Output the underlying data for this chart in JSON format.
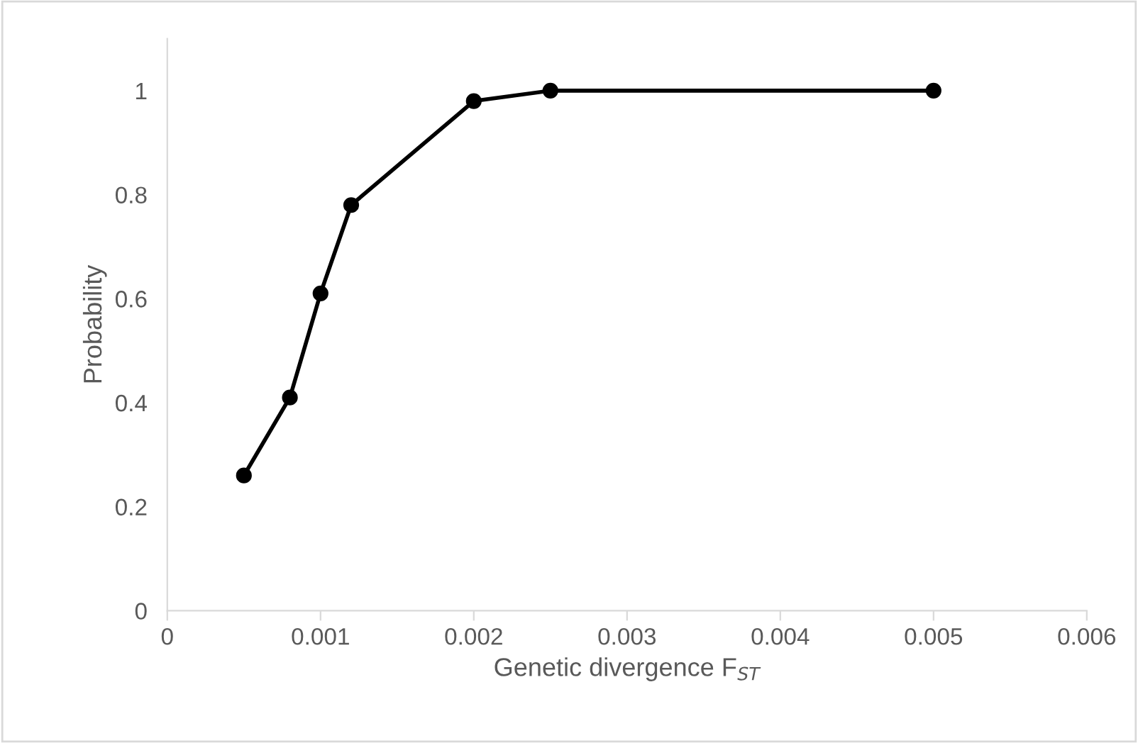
{
  "chart_data": {
    "type": "line",
    "xlabel": "Genetic divergence F$_{ST}$",
    "ylabel": "Probability",
    "x": [
      0.0005,
      0.0008,
      0.001,
      0.0012,
      0.002,
      0.0025,
      0.005
    ],
    "series": [
      {
        "color": "#000000",
        "values": [
          0.26,
          0.41,
          0.61,
          0.78,
          0.98,
          1.0,
          1.0
        ]
      }
    ],
    "xlim": [
      0,
      0.006
    ],
    "xticks": [
      0,
      0.001,
      0.002,
      0.003,
      0.004,
      0.005,
      0.006
    ],
    "ylim": [
      0,
      1.1
    ],
    "yticks": [
      0,
      0.2,
      0.4,
      0.6,
      0.8,
      1
    ],
    "marker": "circle",
    "line_style": "solid",
    "grid": false,
    "legend": false
  }
}
